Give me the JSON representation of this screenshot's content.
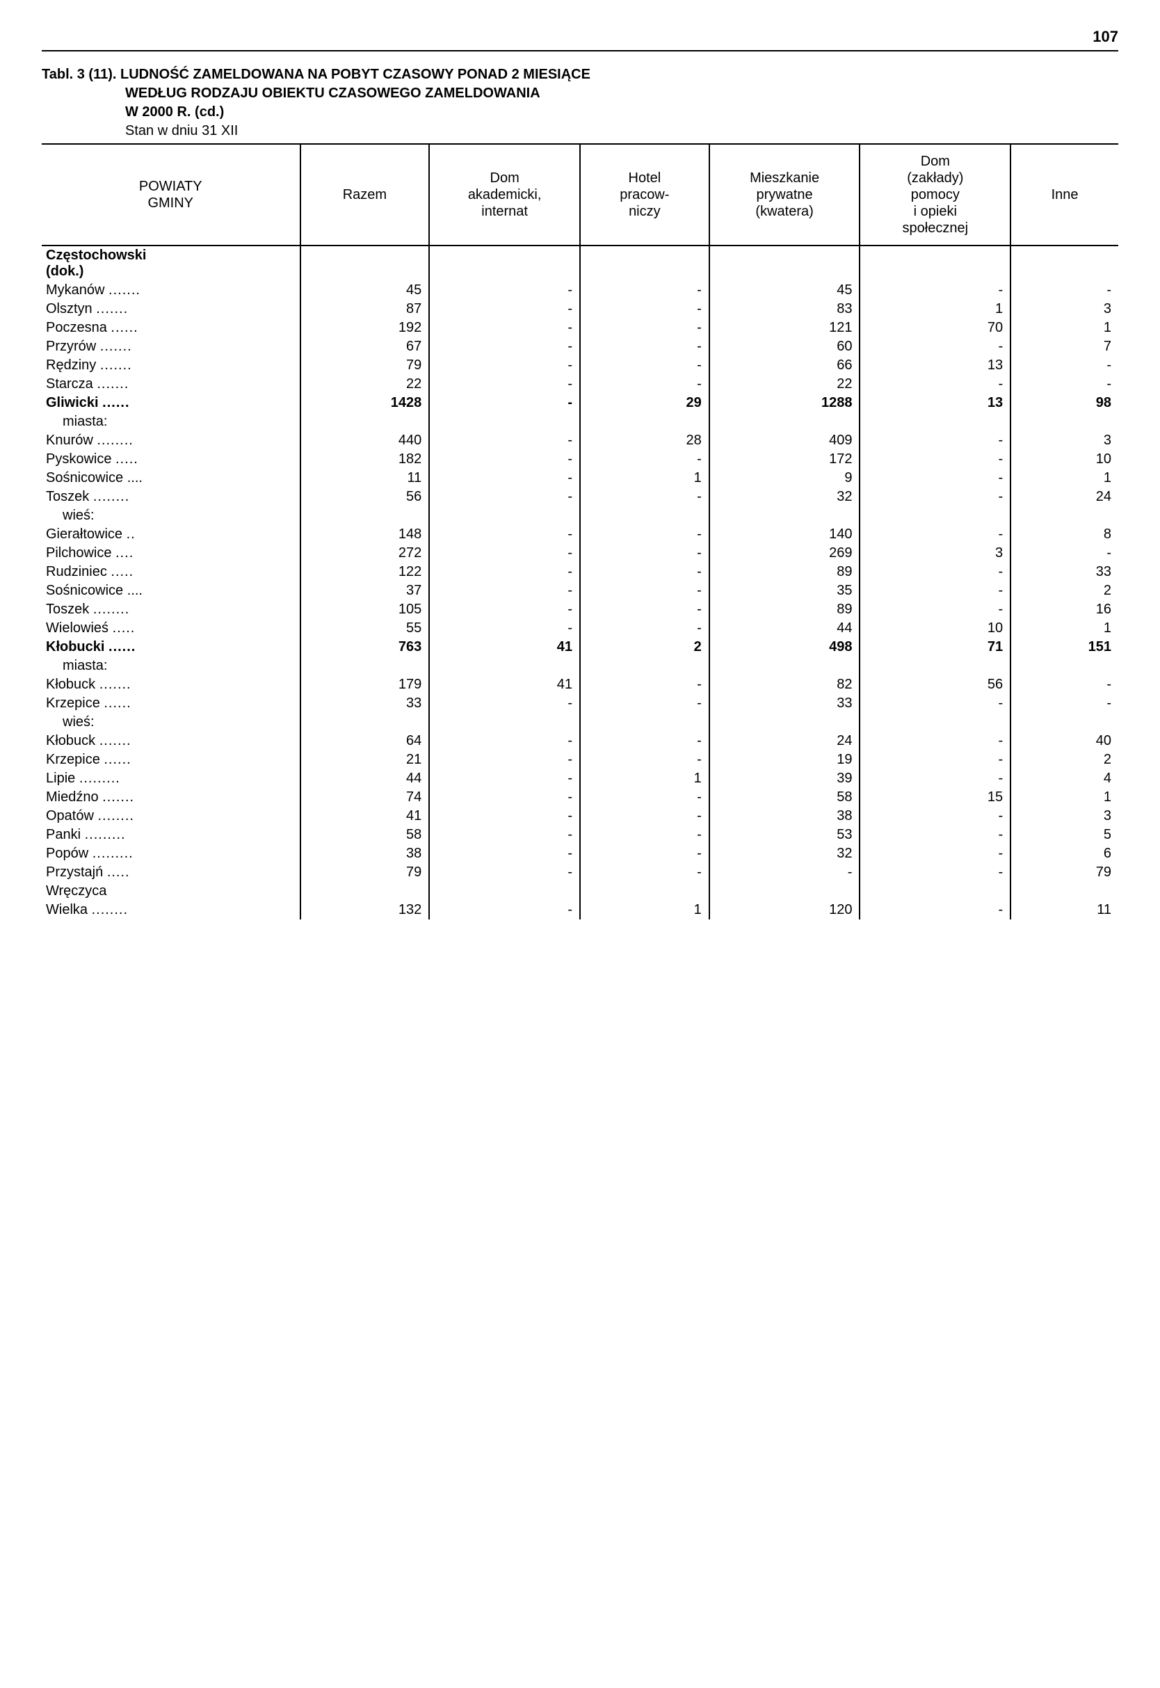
{
  "page_number": "107",
  "title": {
    "label": "Tabl. 3 (11).",
    "line1": "LUDNOŚĆ ZAMELDOWANA NA POBYT CZASOWY PONAD 2 MIESIĄCE",
    "line2": "WEDŁUG RODZAJU OBIEKTU CZASOWEGO ZAMELDOWANIA",
    "line3": "W 2000 R. (cd.)",
    "line4": "Stan w dniu 31 XII"
  },
  "columns": [
    "POWIATY\nGMINY",
    "Razem",
    "Dom\nakademicki,\ninternat",
    "Hotel\npracow-\nniczy",
    "Mieszkanie\nprywatne\n(kwatera)",
    "Dom\n(zakłady)\npomocy\ni opieki\nspołecznej",
    "Inne"
  ],
  "rows": [
    {
      "label": "Częstochowski (dok.)",
      "vals": [
        "",
        "",
        "",
        "",
        "",
        ""
      ],
      "style": "header2",
      "dots": false
    },
    {
      "label": "Mykanów",
      "vals": [
        "45",
        "-",
        "-",
        "45",
        "-",
        "-"
      ],
      "dots": true
    },
    {
      "label": "Olsztyn",
      "vals": [
        "87",
        "-",
        "-",
        "83",
        "1",
        "3"
      ],
      "dots": true
    },
    {
      "label": "Poczesna",
      "vals": [
        "192",
        "-",
        "-",
        "121",
        "70",
        "1"
      ],
      "dots": true
    },
    {
      "label": "Przyrów",
      "vals": [
        "67",
        "-",
        "-",
        "60",
        "-",
        "7"
      ],
      "dots": true
    },
    {
      "label": "Rędziny",
      "vals": [
        "79",
        "-",
        "-",
        "66",
        "13",
        "-"
      ],
      "dots": true
    },
    {
      "label": "Starcza",
      "vals": [
        "22",
        "-",
        "-",
        "22",
        "-",
        "-"
      ],
      "dots": true
    },
    {
      "label": "Gliwicki",
      "vals": [
        "1428",
        "-",
        "29",
        "1288",
        "13",
        "98"
      ],
      "style": "bold",
      "dots": true
    },
    {
      "label": "miasta:",
      "vals": [
        "",
        "",
        "",
        "",
        "",
        ""
      ],
      "indent": true,
      "dots": false
    },
    {
      "label": "Knurów",
      "vals": [
        "440",
        "-",
        "28",
        "409",
        "-",
        "3"
      ],
      "dots": true
    },
    {
      "label": "Pyskowice",
      "vals": [
        "182",
        "-",
        "-",
        "172",
        "-",
        "10"
      ],
      "dots": true
    },
    {
      "label": "Sośnicowice",
      "vals": [
        "11",
        "-",
        "1",
        "9",
        "-",
        "1"
      ],
      "dots": true,
      "trail": "...."
    },
    {
      "label": "Toszek",
      "vals": [
        "56",
        "-",
        "-",
        "32",
        "-",
        "24"
      ],
      "dots": true
    },
    {
      "label": "wieś:",
      "vals": [
        "",
        "",
        "",
        "",
        "",
        ""
      ],
      "indent": true,
      "dots": false
    },
    {
      "label": "Gierałtowice",
      "vals": [
        "148",
        "-",
        "-",
        "140",
        "-",
        "8"
      ],
      "dots": true
    },
    {
      "label": "Pilchowice",
      "vals": [
        "272",
        "-",
        "-",
        "269",
        "3",
        "-"
      ],
      "dots": true
    },
    {
      "label": "Rudziniec",
      "vals": [
        "122",
        "-",
        "-",
        "89",
        "-",
        "33"
      ],
      "dots": true
    },
    {
      "label": "Sośnicowice",
      "vals": [
        "37",
        "-",
        "-",
        "35",
        "-",
        "2"
      ],
      "dots": true,
      "trail": "...."
    },
    {
      "label": "Toszek",
      "vals": [
        "105",
        "-",
        "-",
        "89",
        "-",
        "16"
      ],
      "dots": true
    },
    {
      "label": "Wielowieś",
      "vals": [
        "55",
        "-",
        "-",
        "44",
        "10",
        "1"
      ],
      "dots": true
    },
    {
      "label": "Kłobucki",
      "vals": [
        "763",
        "41",
        "2",
        "498",
        "71",
        "151"
      ],
      "style": "bold",
      "dots": true
    },
    {
      "label": "miasta:",
      "vals": [
        "",
        "",
        "",
        "",
        "",
        ""
      ],
      "indent": true,
      "dots": false
    },
    {
      "label": "Kłobuck",
      "vals": [
        "179",
        "41",
        "-",
        "82",
        "56",
        "-"
      ],
      "dots": true
    },
    {
      "label": "Krzepice",
      "vals": [
        "33",
        "-",
        "-",
        "33",
        "-",
        "-"
      ],
      "dots": true
    },
    {
      "label": "wieś:",
      "vals": [
        "",
        "",
        "",
        "",
        "",
        ""
      ],
      "indent": true,
      "dots": false
    },
    {
      "label": "Kłobuck",
      "vals": [
        "64",
        "-",
        "-",
        "24",
        "-",
        "40"
      ],
      "dots": true
    },
    {
      "label": "Krzepice",
      "vals": [
        "21",
        "-",
        "-",
        "19",
        "-",
        "2"
      ],
      "dots": true
    },
    {
      "label": "Lipie",
      "vals": [
        "44",
        "-",
        "1",
        "39",
        "-",
        "4"
      ],
      "dots": true
    },
    {
      "label": "Miedźno",
      "vals": [
        "74",
        "-",
        "-",
        "58",
        "15",
        "1"
      ],
      "dots": true
    },
    {
      "label": "Opatów",
      "vals": [
        "41",
        "-",
        "-",
        "38",
        "-",
        "3"
      ],
      "dots": true
    },
    {
      "label": "Panki",
      "vals": [
        "58",
        "-",
        "-",
        "53",
        "-",
        "5"
      ],
      "dots": true
    },
    {
      "label": "Popów",
      "vals": [
        "38",
        "-",
        "-",
        "32",
        "-",
        "6"
      ],
      "dots": true
    },
    {
      "label": "Przystajń",
      "vals": [
        "79",
        "-",
        "-",
        "-",
        "-",
        "79"
      ],
      "dots": true
    },
    {
      "label": "Wręczyca",
      "vals": [
        "",
        "",
        "",
        "",
        "",
        ""
      ],
      "dots": false
    },
    {
      "label": "Wielka",
      "vals": [
        "132",
        "-",
        "1",
        "120",
        "-",
        "11"
      ],
      "dots": true
    }
  ]
}
